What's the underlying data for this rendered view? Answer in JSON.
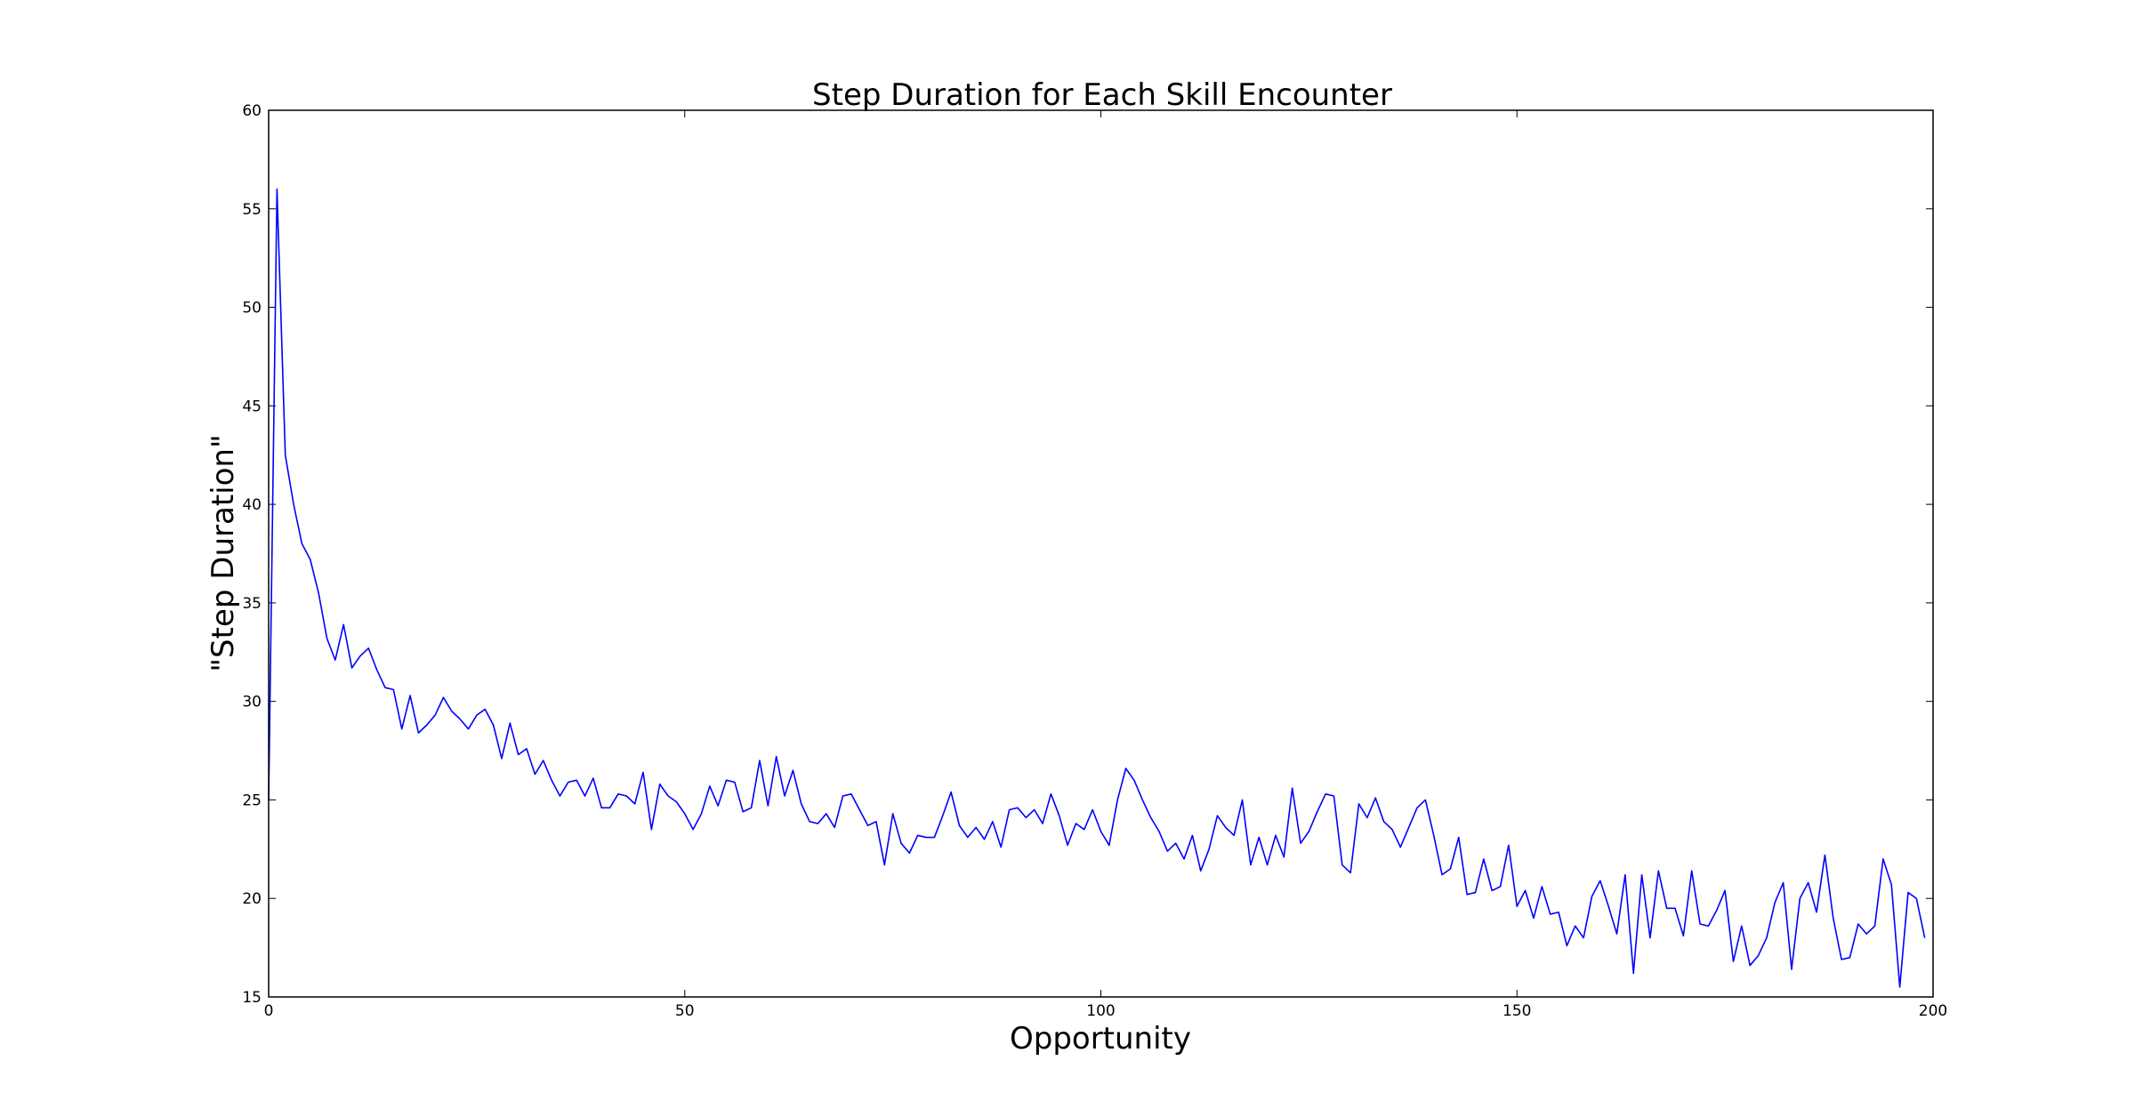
{
  "chart_data": {
    "type": "line",
    "title": "Step Duration for Each Skill Encounter",
    "xlabel": "Opportunity",
    "ylabel": "\"Step Duration\"",
    "xlim": [
      0,
      200
    ],
    "ylim": [
      15,
      60
    ],
    "xticks": [
      0,
      50,
      100,
      150,
      200
    ],
    "yticks": [
      15,
      20,
      25,
      30,
      35,
      40,
      45,
      50,
      55,
      60
    ],
    "grid": false,
    "line_color": "#0000ff",
    "series": [
      {
        "x": [
          0,
          1,
          2,
          3,
          4,
          5,
          6,
          7,
          8,
          9,
          10,
          11,
          12,
          13,
          14,
          15,
          16,
          17,
          18,
          19,
          20,
          21,
          22,
          23,
          24,
          25,
          26,
          27,
          28,
          29,
          30,
          31,
          32,
          33,
          34,
          35,
          36,
          37,
          38,
          39,
          40,
          41,
          42,
          43,
          44,
          45,
          46,
          47,
          48,
          49,
          50,
          51,
          52,
          53,
          54,
          55,
          56,
          57,
          58,
          59,
          60,
          61,
          62,
          63,
          64,
          65,
          66,
          67,
          68,
          69,
          70,
          71,
          72,
          73,
          74,
          75,
          76,
          77,
          78,
          79,
          80,
          81,
          82,
          83,
          84,
          85,
          86,
          87,
          88,
          89,
          90,
          91,
          92,
          93,
          94,
          95,
          96,
          97,
          98,
          99,
          100,
          101,
          102,
          103,
          104,
          105,
          106,
          107,
          108,
          109,
          110,
          111,
          112,
          113,
          114,
          115,
          116,
          117,
          118,
          119,
          120,
          121,
          122,
          123,
          124,
          125,
          126,
          127,
          128,
          129,
          130,
          131,
          132,
          133,
          134,
          135,
          136,
          137,
          138,
          139,
          140,
          141,
          142,
          143,
          144,
          145,
          146,
          147,
          148,
          149,
          150,
          151,
          152,
          153,
          154,
          155,
          156,
          157,
          158,
          159,
          160,
          161,
          162,
          163,
          164,
          165,
          166,
          167,
          168,
          169,
          170,
          171,
          172,
          173,
          174,
          175,
          176,
          177,
          178,
          179,
          180,
          181,
          182,
          183,
          184,
          185,
          186,
          187,
          188,
          189,
          190,
          191,
          192,
          193,
          194,
          195,
          196,
          197,
          198,
          199
        ],
        "values": [
          25.0,
          56.0,
          42.5,
          40.0,
          38.0,
          37.2,
          35.5,
          33.2,
          32.1,
          33.9,
          31.7,
          32.3,
          32.7,
          31.6,
          30.7,
          30.6,
          28.6,
          30.3,
          28.4,
          28.8,
          29.3,
          30.2,
          29.5,
          29.1,
          28.6,
          29.3,
          29.6,
          28.8,
          27.1,
          28.9,
          27.3,
          27.6,
          26.3,
          27.0,
          26.0,
          25.2,
          25.9,
          26.0,
          25.2,
          26.1,
          24.6,
          24.6,
          25.3,
          25.2,
          24.8,
          26.4,
          23.5,
          25.8,
          25.2,
          24.9,
          24.3,
          23.5,
          24.3,
          25.7,
          24.7,
          26.0,
          25.9,
          24.4,
          24.6,
          27.0,
          24.7,
          27.2,
          25.2,
          26.5,
          24.8,
          23.9,
          23.8,
          24.3,
          23.6,
          25.2,
          25.3,
          24.5,
          23.7,
          23.9,
          21.7,
          24.3,
          22.8,
          22.3,
          23.2,
          23.1,
          23.1,
          24.2,
          25.4,
          23.7,
          23.1,
          23.6,
          23.0,
          23.9,
          22.6,
          24.5,
          24.6,
          24.1,
          24.5,
          23.8,
          25.3,
          24.2,
          22.7,
          23.8,
          23.5,
          24.5,
          23.4,
          22.7,
          25.0,
          26.6,
          26.0,
          25.0,
          24.1,
          23.4,
          22.4,
          22.8,
          22.0,
          23.2,
          21.4,
          22.5,
          24.2,
          23.6,
          23.2,
          25.0,
          21.7,
          23.1,
          21.7,
          23.2,
          22.1,
          25.6,
          22.8,
          23.4,
          24.4,
          25.3,
          25.2,
          21.7,
          21.3,
          24.8,
          24.1,
          25.1,
          23.9,
          23.5,
          22.6,
          23.6,
          24.6,
          25.0,
          23.2,
          21.2,
          21.5,
          23.1,
          20.2,
          20.3,
          22.0,
          20.4,
          20.6,
          22.7,
          19.6,
          20.4,
          19.0,
          20.6,
          19.2,
          19.3,
          17.6,
          18.6,
          18.0,
          20.1,
          20.9,
          19.6,
          18.2,
          21.2,
          16.2,
          21.2,
          18.0,
          21.4,
          19.5,
          19.5,
          18.1,
          21.4,
          18.7,
          18.6,
          19.4,
          20.4,
          16.8,
          18.6,
          16.6,
          17.1,
          18.0,
          19.8,
          20.8,
          16.4,
          20.0,
          20.8,
          19.3,
          22.2,
          19.0,
          16.9,
          17.0,
          18.7,
          18.2,
          18.6,
          22.0,
          20.7,
          15.5,
          20.3,
          20.0,
          18.0
        ]
      }
    ]
  }
}
